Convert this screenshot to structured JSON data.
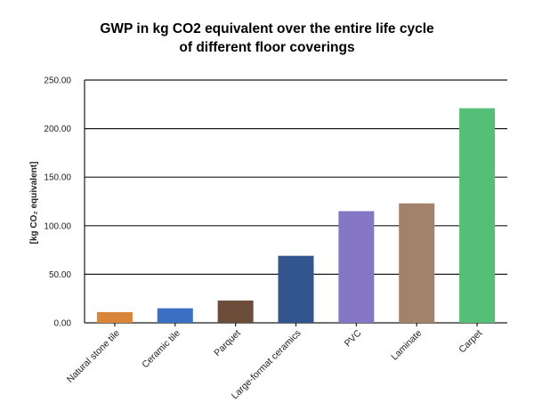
{
  "chart_data": {
    "type": "bar",
    "title_lines": [
      "GWP in kg CO2 equivalent over the entire life cycle",
      "of different floor coverings"
    ],
    "ylabel": "[kg CO₂ equivalent]",
    "ylim": [
      0,
      250
    ],
    "yticks": [
      "0.00",
      "50.00",
      "100.00",
      "150.00",
      "200.00",
      "250.00"
    ],
    "grid": true,
    "categories": [
      "Natural stone tile",
      "Ceramic tile",
      "Parquet",
      "Large-format ceramics",
      "PVC",
      "Laminate",
      "Carpet"
    ],
    "values": [
      11,
      15,
      23,
      69,
      115,
      123,
      221
    ],
    "colors": [
      "#d9853b",
      "#3b6fc4",
      "#6b4d3a",
      "#33558f",
      "#8576c6",
      "#a3826b",
      "#55bf77"
    ]
  }
}
